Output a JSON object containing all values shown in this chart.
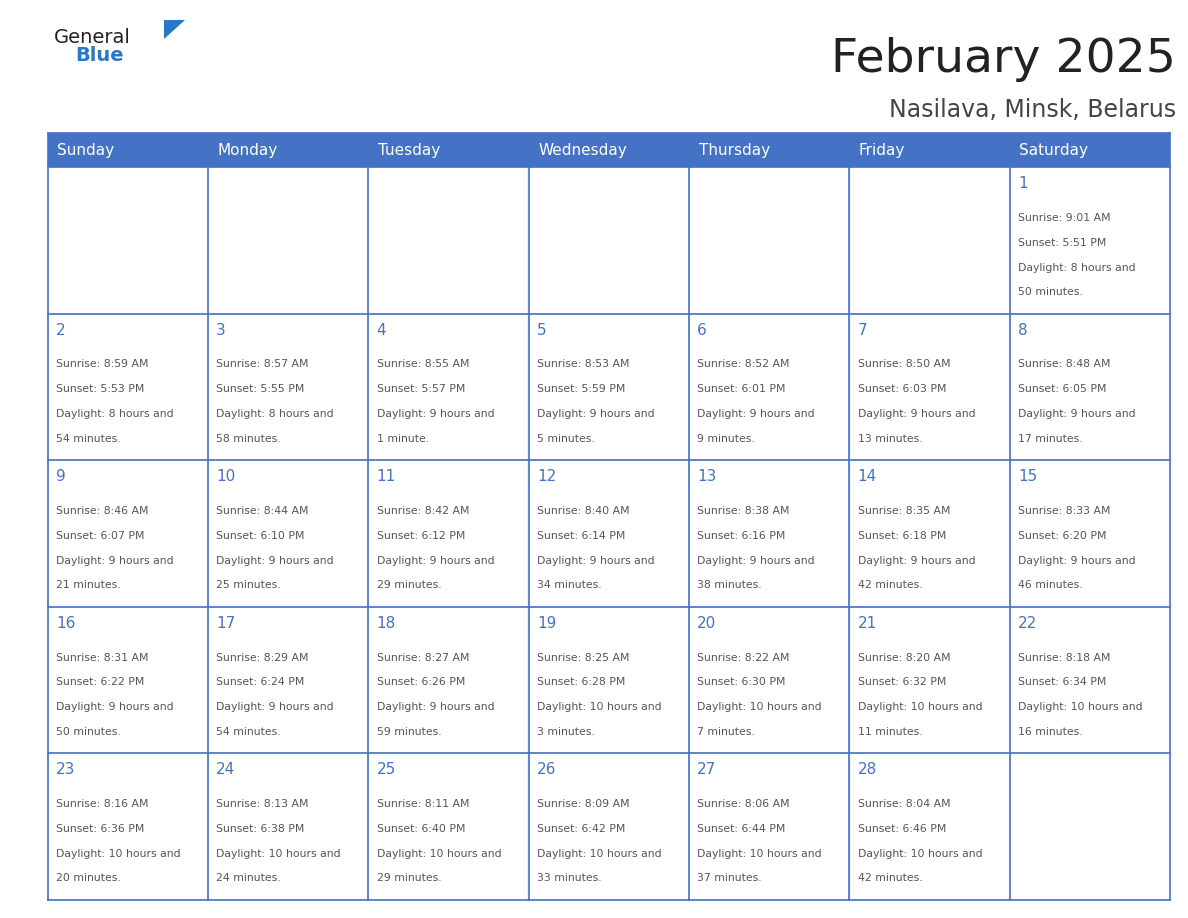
{
  "title": "February 2025",
  "subtitle": "Nasilava, Minsk, Belarus",
  "days_of_week": [
    "Sunday",
    "Monday",
    "Tuesday",
    "Wednesday",
    "Thursday",
    "Friday",
    "Saturday"
  ],
  "header_bg_color": "#4472C4",
  "header_text_color": "#FFFFFF",
  "cell_bg_color": "#FFFFFF",
  "grid_line_color": "#4472C4",
  "day_number_color": "#4472C4",
  "info_text_color": "#555555",
  "logo_general_color": "#222222",
  "logo_blue_color": "#2878C8",
  "background_color": "#FFFFFF",
  "title_color": "#222222",
  "subtitle_color": "#444444",
  "calendar_data": [
    [
      null,
      null,
      null,
      null,
      null,
      null,
      {
        "day": 1,
        "sunrise": "9:01 AM",
        "sunset": "5:51 PM",
        "daylight": "8 hours and 50 minutes."
      }
    ],
    [
      {
        "day": 2,
        "sunrise": "8:59 AM",
        "sunset": "5:53 PM",
        "daylight": "8 hours and 54 minutes."
      },
      {
        "day": 3,
        "sunrise": "8:57 AM",
        "sunset": "5:55 PM",
        "daylight": "8 hours and 58 minutes."
      },
      {
        "day": 4,
        "sunrise": "8:55 AM",
        "sunset": "5:57 PM",
        "daylight": "9 hours and 1 minute."
      },
      {
        "day": 5,
        "sunrise": "8:53 AM",
        "sunset": "5:59 PM",
        "daylight": "9 hours and 5 minutes."
      },
      {
        "day": 6,
        "sunrise": "8:52 AM",
        "sunset": "6:01 PM",
        "daylight": "9 hours and 9 minutes."
      },
      {
        "day": 7,
        "sunrise": "8:50 AM",
        "sunset": "6:03 PM",
        "daylight": "9 hours and 13 minutes."
      },
      {
        "day": 8,
        "sunrise": "8:48 AM",
        "sunset": "6:05 PM",
        "daylight": "9 hours and 17 minutes."
      }
    ],
    [
      {
        "day": 9,
        "sunrise": "8:46 AM",
        "sunset": "6:07 PM",
        "daylight": "9 hours and 21 minutes."
      },
      {
        "day": 10,
        "sunrise": "8:44 AM",
        "sunset": "6:10 PM",
        "daylight": "9 hours and 25 minutes."
      },
      {
        "day": 11,
        "sunrise": "8:42 AM",
        "sunset": "6:12 PM",
        "daylight": "9 hours and 29 minutes."
      },
      {
        "day": 12,
        "sunrise": "8:40 AM",
        "sunset": "6:14 PM",
        "daylight": "9 hours and 34 minutes."
      },
      {
        "day": 13,
        "sunrise": "8:38 AM",
        "sunset": "6:16 PM",
        "daylight": "9 hours and 38 minutes."
      },
      {
        "day": 14,
        "sunrise": "8:35 AM",
        "sunset": "6:18 PM",
        "daylight": "9 hours and 42 minutes."
      },
      {
        "day": 15,
        "sunrise": "8:33 AM",
        "sunset": "6:20 PM",
        "daylight": "9 hours and 46 minutes."
      }
    ],
    [
      {
        "day": 16,
        "sunrise": "8:31 AM",
        "sunset": "6:22 PM",
        "daylight": "9 hours and 50 minutes."
      },
      {
        "day": 17,
        "sunrise": "8:29 AM",
        "sunset": "6:24 PM",
        "daylight": "9 hours and 54 minutes."
      },
      {
        "day": 18,
        "sunrise": "8:27 AM",
        "sunset": "6:26 PM",
        "daylight": "9 hours and 59 minutes."
      },
      {
        "day": 19,
        "sunrise": "8:25 AM",
        "sunset": "6:28 PM",
        "daylight": "10 hours and 3 minutes."
      },
      {
        "day": 20,
        "sunrise": "8:22 AM",
        "sunset": "6:30 PM",
        "daylight": "10 hours and 7 minutes."
      },
      {
        "day": 21,
        "sunrise": "8:20 AM",
        "sunset": "6:32 PM",
        "daylight": "10 hours and 11 minutes."
      },
      {
        "day": 22,
        "sunrise": "8:18 AM",
        "sunset": "6:34 PM",
        "daylight": "10 hours and 16 minutes."
      }
    ],
    [
      {
        "day": 23,
        "sunrise": "8:16 AM",
        "sunset": "6:36 PM",
        "daylight": "10 hours and 20 minutes."
      },
      {
        "day": 24,
        "sunrise": "8:13 AM",
        "sunset": "6:38 PM",
        "daylight": "10 hours and 24 minutes."
      },
      {
        "day": 25,
        "sunrise": "8:11 AM",
        "sunset": "6:40 PM",
        "daylight": "10 hours and 29 minutes."
      },
      {
        "day": 26,
        "sunrise": "8:09 AM",
        "sunset": "6:42 PM",
        "daylight": "10 hours and 33 minutes."
      },
      {
        "day": 27,
        "sunrise": "8:06 AM",
        "sunset": "6:44 PM",
        "daylight": "10 hours and 37 minutes."
      },
      {
        "day": 28,
        "sunrise": "8:04 AM",
        "sunset": "6:46 PM",
        "daylight": "10 hours and 42 minutes."
      },
      null
    ]
  ]
}
